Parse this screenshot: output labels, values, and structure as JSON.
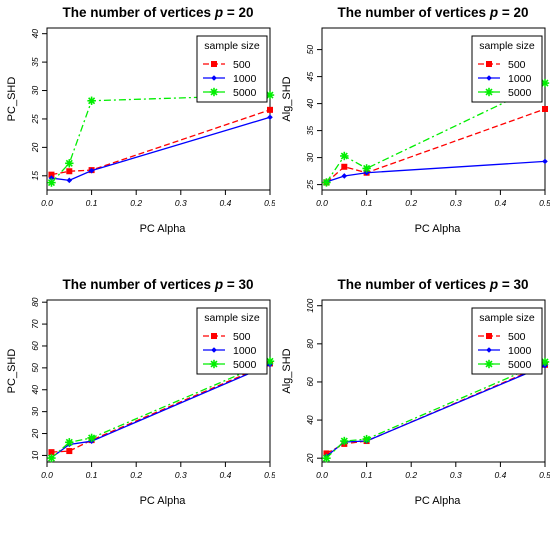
{
  "chart_data": [
    {
      "type": "line",
      "title": "The number of vertices p = 20",
      "title_main": "The number of vertices ",
      "title_italic": "p",
      "title_tail": " = 20",
      "xlabel": "PC Alpha",
      "ylabel": "PC_SHD",
      "x": [
        0.01,
        0.05,
        0.1,
        0.5
      ],
      "xlim": [
        0,
        0.5
      ],
      "ylim": [
        12.5,
        41
      ],
      "xticks": [
        "0.0",
        "0.1",
        "0.2",
        "0.3",
        "0.4",
        "0.5"
      ],
      "yticks": [
        "15",
        "20",
        "25",
        "30",
        "35",
        "40"
      ],
      "legend": {
        "title": "sample size",
        "position": "top-right"
      },
      "series": [
        {
          "name": "500",
          "color": "#ff0000",
          "marker": "square",
          "dash": "dashed",
          "values": [
            15.2,
            15.8,
            16.0,
            26.6
          ]
        },
        {
          "name": "1000",
          "color": "#0000ff",
          "marker": "diamond",
          "dash": "solid",
          "values": [
            14.6,
            14.2,
            15.9,
            25.3
          ]
        },
        {
          "name": "5000",
          "color": "#00ee00",
          "marker": "star",
          "dash": "dotdash",
          "values": [
            13.8,
            17.2,
            28.2,
            29.2
          ]
        }
      ]
    },
    {
      "type": "line",
      "title": "The number of vertices p = 20",
      "title_main": "The number of vertices ",
      "title_italic": "p",
      "title_tail": " = 20",
      "xlabel": "PC Alpha",
      "ylabel": "Alg_SHD",
      "x": [
        0.01,
        0.05,
        0.1,
        0.5
      ],
      "xlim": [
        0,
        0.5
      ],
      "ylim": [
        24,
        54
      ],
      "xticks": [
        "0.0",
        "0.1",
        "0.2",
        "0.3",
        "0.4",
        "0.5"
      ],
      "yticks": [
        "25",
        "30",
        "35",
        "40",
        "45",
        "50"
      ],
      "legend": {
        "title": "sample size",
        "position": "top-right"
      },
      "series": [
        {
          "name": "500",
          "color": "#ff0000",
          "marker": "square",
          "dash": "dashed",
          "values": [
            25.4,
            28.3,
            27.2,
            39.0
          ]
        },
        {
          "name": "1000",
          "color": "#0000ff",
          "marker": "diamond",
          "dash": "solid",
          "values": [
            25.5,
            26.6,
            27.2,
            29.3
          ]
        },
        {
          "name": "5000",
          "color": "#00ee00",
          "marker": "star",
          "dash": "dotdash",
          "values": [
            25.4,
            30.3,
            28.0,
            43.8
          ]
        }
      ]
    },
    {
      "type": "line",
      "title": "The number of vertices p = 30",
      "title_main": "The number of vertices ",
      "title_italic": "p",
      "title_tail": " = 30",
      "xlabel": "PC Alpha",
      "ylabel": "PC_SHD",
      "x": [
        0.01,
        0.05,
        0.1,
        0.5
      ],
      "xlim": [
        0,
        0.5
      ],
      "ylim": [
        7,
        81
      ],
      "xticks": [
        "0.0",
        "0.1",
        "0.2",
        "0.3",
        "0.4",
        "0.5"
      ],
      "yticks": [
        "10",
        "20",
        "30",
        "40",
        "50",
        "60",
        "70",
        "80"
      ],
      "legend": {
        "title": "sample size",
        "position": "top-right"
      },
      "series": [
        {
          "name": "500",
          "color": "#ff0000",
          "marker": "square",
          "dash": "dashed",
          "values": [
            11.5,
            12.0,
            17.0,
            52.0
          ]
        },
        {
          "name": "1000",
          "color": "#0000ff",
          "marker": "diamond",
          "dash": "solid",
          "values": [
            9.0,
            15.0,
            16.5,
            51.5
          ]
        },
        {
          "name": "5000",
          "color": "#00ee00",
          "marker": "star",
          "dash": "dotdash",
          "values": [
            8.8,
            16.0,
            18.0,
            53.0
          ]
        }
      ]
    },
    {
      "type": "line",
      "title": "The number of vertices p = 30",
      "title_main": "The number of vertices ",
      "title_italic": "p",
      "title_tail": " = 30",
      "xlabel": "PC Alpha",
      "ylabel": "Alg_SHD",
      "x": [
        0.01,
        0.05,
        0.1,
        0.5
      ],
      "xlim": [
        0,
        0.5
      ],
      "ylim": [
        18,
        103
      ],
      "xticks": [
        "0.0",
        "0.1",
        "0.2",
        "0.3",
        "0.4",
        "0.5"
      ],
      "yticks": [
        "20",
        "40",
        "60",
        "80",
        "100"
      ],
      "legend": {
        "title": "sample size",
        "position": "top-right"
      },
      "series": [
        {
          "name": "500",
          "color": "#ff0000",
          "marker": "square",
          "dash": "dashed",
          "values": [
            22.5,
            27.5,
            29.0,
            69.0
          ]
        },
        {
          "name": "1000",
          "color": "#0000ff",
          "marker": "diamond",
          "dash": "solid",
          "values": [
            21.0,
            28.5,
            29.0,
            68.5
          ]
        },
        {
          "name": "5000",
          "color": "#00ee00",
          "marker": "star",
          "dash": "dotdash",
          "values": [
            20.0,
            29.0,
            30.0,
            70.5
          ]
        }
      ]
    }
  ]
}
